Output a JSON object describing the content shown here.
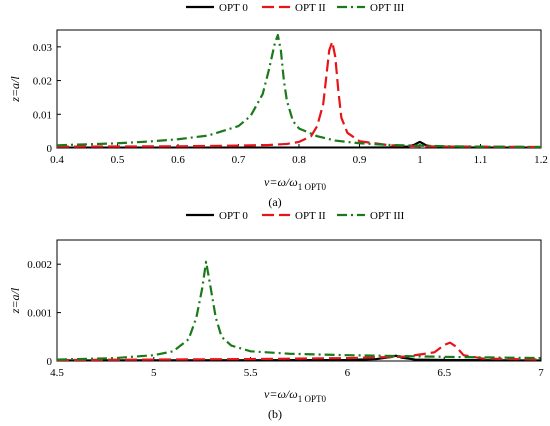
{
  "chart_data": [
    {
      "type": "line",
      "caption": "(a)",
      "xlabel": "ν=ω/ω",
      "xlabel_sub": "1 OPT0",
      "ylabel": "z=a/l",
      "xlim": [
        0.4,
        1.2
      ],
      "ylim": [
        0,
        0.035
      ],
      "xticks": [
        "0.4",
        "0.5",
        "0.6",
        "0.7",
        "0.8",
        "0.9",
        "1",
        "1.1",
        "1.2"
      ],
      "yticks": [
        "0",
        "0.01",
        "0.02",
        "0.03"
      ],
      "legend_position": "top",
      "series": [
        {
          "name": "OPT 0",
          "color": "#000000",
          "style": "solid",
          "x": [
            0.4,
            0.9,
            0.95,
            0.98,
            0.99,
            0.995,
            1.0,
            1.005,
            1.01,
            1.02,
            1.05,
            1.1,
            1.2
          ],
          "y": [
            0.0001,
            0.0001,
            0.0002,
            0.0004,
            0.0009,
            0.0014,
            0.0018,
            0.0013,
            0.0008,
            0.0004,
            0.0002,
            0.0001,
            0.0001
          ]
        },
        {
          "name": "OPT II",
          "color": "#e8141a",
          "style": "dashed",
          "x": [
            0.4,
            0.6,
            0.7,
            0.75,
            0.78,
            0.8,
            0.82,
            0.83,
            0.84,
            0.845,
            0.85,
            0.855,
            0.86,
            0.865,
            0.87,
            0.88,
            0.9,
            0.95,
            1.0,
            1.05,
            1.1,
            1.2
          ],
          "y": [
            0.0004,
            0.0005,
            0.0007,
            0.0009,
            0.0012,
            0.0018,
            0.0035,
            0.0065,
            0.013,
            0.021,
            0.029,
            0.0315,
            0.027,
            0.017,
            0.009,
            0.0045,
            0.002,
            0.0008,
            0.0005,
            0.0004,
            0.0004,
            0.0003
          ]
        },
        {
          "name": "OPT III",
          "color": "#1a7a1a",
          "style": "dashdot",
          "x": [
            0.4,
            0.5,
            0.55,
            0.6,
            0.65,
            0.7,
            0.72,
            0.74,
            0.75,
            0.76,
            0.765,
            0.77,
            0.775,
            0.78,
            0.79,
            0.8,
            0.83,
            0.86,
            0.9,
            0.95,
            1.0,
            1.05,
            1.1,
            1.2
          ],
          "y": [
            0.0008,
            0.0014,
            0.0019,
            0.0026,
            0.0037,
            0.0065,
            0.0095,
            0.016,
            0.023,
            0.031,
            0.0335,
            0.029,
            0.02,
            0.014,
            0.008,
            0.0058,
            0.0035,
            0.0022,
            0.0014,
            0.0009,
            0.0007,
            0.0005,
            0.0004,
            0.0003
          ]
        }
      ]
    },
    {
      "type": "line",
      "caption": "(b)",
      "xlabel": "ν=ω/ω",
      "xlabel_sub": "1 OPT0",
      "ylabel": "z=a/l",
      "xlim": [
        4.5,
        7.0
      ],
      "ylim": [
        0,
        0.0025
      ],
      "xticks": [
        "4.5",
        "5",
        "5.5",
        "6",
        "6.5",
        "7"
      ],
      "yticks": [
        "0",
        "0.001",
        "0.002"
      ],
      "legend_position": "top",
      "series": [
        {
          "name": "OPT 0",
          "color": "#000000",
          "style": "solid",
          "x": [
            4.5,
            6.0,
            6.15,
            6.22,
            6.25,
            6.28,
            6.35,
            6.5,
            7.0
          ],
          "y": [
            1e-05,
            2e-05,
            4e-05,
            8e-05,
            0.00011,
            7e-05,
            3e-05,
            2e-05,
            1e-05
          ]
        },
        {
          "name": "OPT II",
          "color": "#e8141a",
          "style": "dashed",
          "x": [
            4.5,
            5.0,
            5.5,
            6.0,
            6.3,
            6.45,
            6.5,
            6.53,
            6.56,
            6.6,
            6.7,
            7.0
          ],
          "y": [
            2e-05,
            3e-05,
            4e-05,
            6e-05,
            9e-05,
            0.00018,
            0.00033,
            0.00038,
            0.0003,
            0.00012,
            5e-05,
            3e-05
          ]
        },
        {
          "name": "OPT III",
          "color": "#1a7a1a",
          "style": "dashdot",
          "x": [
            4.5,
            4.8,
            5.0,
            5.1,
            5.18,
            5.22,
            5.25,
            5.27,
            5.29,
            5.32,
            5.35,
            5.4,
            5.5,
            5.7,
            6.0,
            6.3,
            6.6,
            7.0
          ],
          "y": [
            3e-05,
            6e-05,
            0.00012,
            0.0002,
            0.00045,
            0.0009,
            0.0015,
            0.00205,
            0.0016,
            0.0009,
            0.0005,
            0.00032,
            0.0002,
            0.00015,
            0.00012,
            0.0001,
            8e-05,
            6e-05
          ]
        }
      ]
    }
  ]
}
